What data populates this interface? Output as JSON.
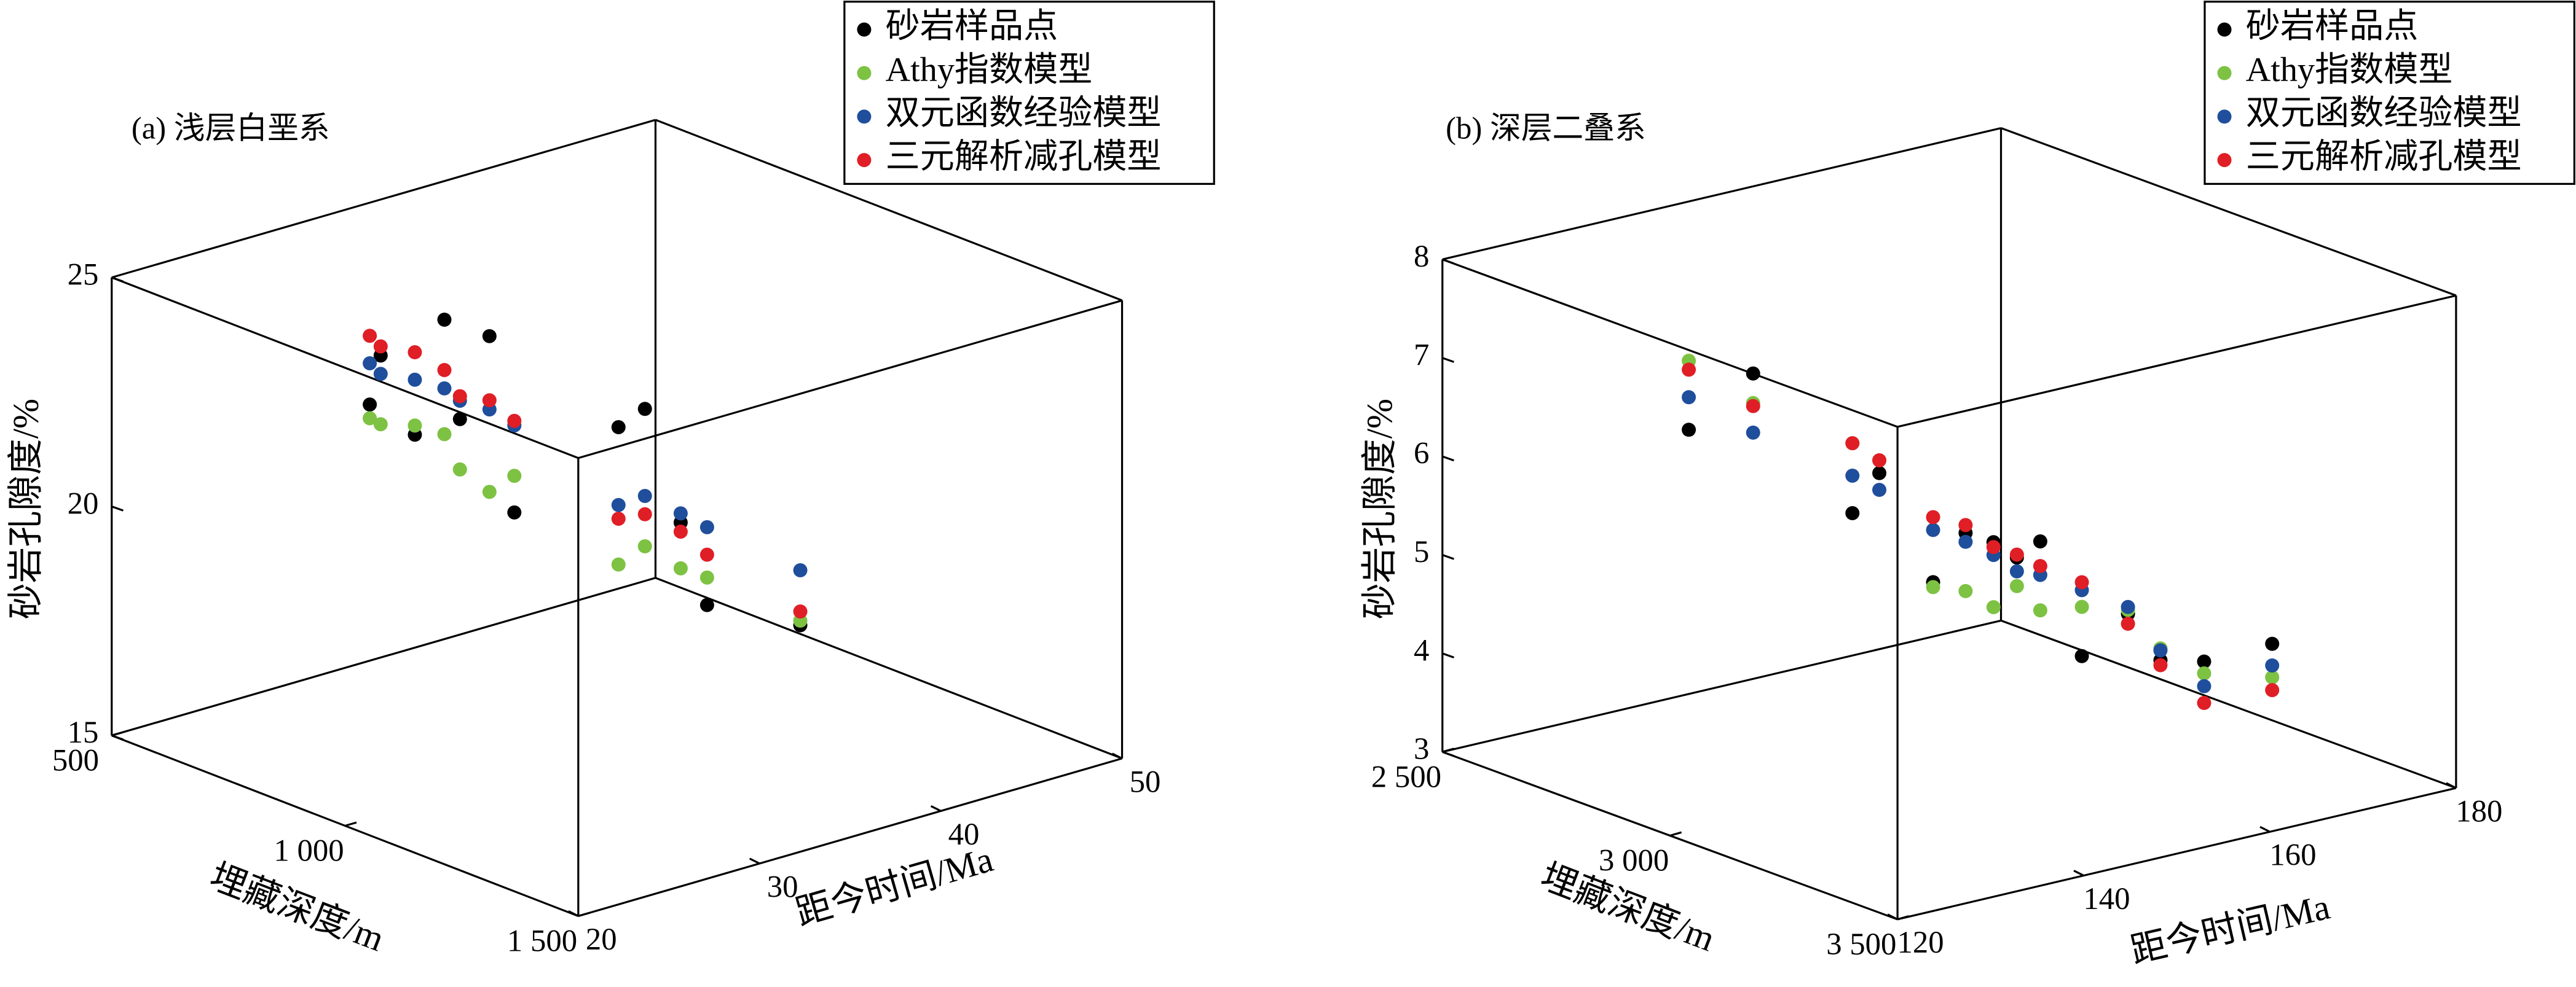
{
  "chart_data": [
    {
      "type": "scatter3d",
      "title": "(a) 浅层白垩系",
      "xlabel": "距今时间/Ma",
      "ylabel": "埋藏深度/m",
      "zlabel": "砂岩孔隙度/%",
      "x": [
        26,
        26.6,
        27.2,
        27.8,
        28.4,
        29,
        29.6,
        32,
        33.2,
        34.4,
        35.6,
        41
      ],
      "y": [
        820,
        820,
        870,
        910,
        920,
        960,
        990,
        1120,
        1130,
        1160,
        1170,
        1160
      ],
      "xlim": [
        20,
        50
      ],
      "xticks": [
        20,
        30,
        40,
        50
      ],
      "ylim": [
        500,
        1500
      ],
      "yticks": [
        500,
        {
          "value": 1000,
          "label": "1 000"
        },
        {
          "value": 1500,
          "label": "1 500"
        }
      ],
      "zlim": [
        15,
        25
      ],
      "zticks": [
        15,
        20,
        25
      ],
      "legend": "upper right",
      "series": [
        {
          "name": "砂岩样品点",
          "color": "#000000",
          "values": [
            22.8,
            23.8,
            22.2,
            24.8,
            22.6,
            24.5,
            20.7,
            22.8,
            23.1,
            20.6,
            18.7,
            17.6
          ]
        },
        {
          "name": "Athy指数模型",
          "color": "#7dc242",
          "values": [
            22.5,
            22.3,
            22.4,
            22.3,
            21.5,
            21.1,
            21.5,
            19.8,
            20.1,
            19.6,
            19.3,
            17.7
          ]
        },
        {
          "name": "双元函数经验模型",
          "color": "#1f4e9c",
          "values": [
            23.7,
            23.4,
            23.4,
            23.3,
            23.0,
            22.9,
            22.6,
            21.1,
            21.2,
            20.8,
            20.4,
            18.8
          ]
        },
        {
          "name": "三元解析减孔模型",
          "color": "#e01e26",
          "values": [
            24.3,
            24.0,
            24.0,
            23.7,
            23.1,
            23.1,
            22.7,
            20.8,
            20.8,
            20.4,
            19.8,
            17.9
          ]
        }
      ]
    },
    {
      "type": "scatter3d",
      "title": "(b) 深层二叠系",
      "xlabel": "距今时间/Ma",
      "ylabel": "埋藏深度/m",
      "zlabel": "砂岩孔隙度/%",
      "x": [
        123,
        126,
        130.8,
        133.2,
        138,
        141,
        144,
        147,
        150,
        153,
        156,
        159,
        163.2,
        171
      ],
      "y": [
        2980,
        3060,
        3180,
        3190,
        3210,
        3220,
        3220,
        3210,
        3200,
        3230,
        3270,
        3280,
        3290,
        3280
      ],
      "xlim": [
        120,
        180
      ],
      "xticks": [
        120,
        140,
        160,
        180
      ],
      "ylim": [
        2500,
        3500
      ],
      "yticks": [
        {
          "value": 2500,
          "label": "2 500"
        },
        {
          "value": 3000,
          "label": "3 000"
        },
        {
          "value": 3500,
          "label": "3 500"
        }
      ],
      "zlim": [
        3,
        8
      ],
      "zticks": [
        3,
        4,
        5,
        6,
        7,
        8
      ],
      "legend": "upper right",
      "series": [
        {
          "name": "砂岩样品点",
          "color": "#000000",
          "values": [
            7.02,
            7.66,
            6.34,
            6.71,
            5.53,
            5.98,
            5.82,
            5.58,
            5.66,
            4.48,
            4.91,
            4.39,
            4.3,
            4.29
          ]
        },
        {
          "name": "Athy指数模型",
          "color": "#7dc242",
          "values": [
            7.72,
            7.36,
            7.05,
            6.84,
            5.48,
            5.39,
            5.16,
            5.29,
            4.96,
            4.98,
            4.95,
            4.51,
            4.18,
            3.95
          ]
        },
        {
          "name": "双元函数经验模型",
          "color": "#1f4e9c",
          "values": [
            7.35,
            7.06,
            6.72,
            6.54,
            6.06,
            5.89,
            5.69,
            5.44,
            5.32,
            5.15,
            4.98,
            4.49,
            4.05,
            4.07
          ]
        },
        {
          "name": "三元解析减孔模型",
          "color": "#e01e26",
          "values": [
            7.63,
            7.33,
            7.05,
            6.84,
            6.19,
            6.06,
            5.77,
            5.61,
            5.41,
            5.23,
            4.81,
            4.34,
            3.88,
            3.82
          ]
        }
      ]
    }
  ]
}
